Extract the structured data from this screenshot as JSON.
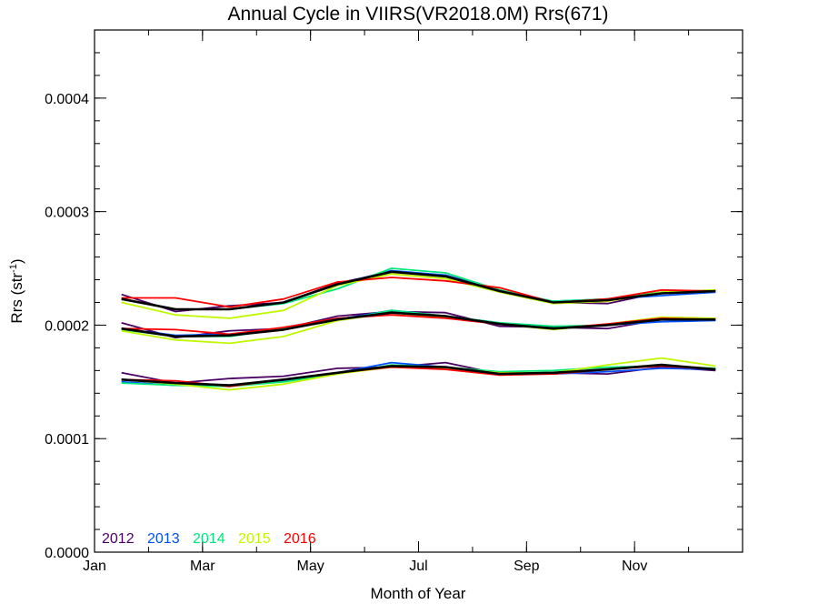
{
  "chart_data": {
    "type": "line",
    "title": "Annual Cycle in VIIRS(VR2018.0M) Rrs(671)",
    "xlabel": "Month of Year",
    "ylabel": "Rrs (str",
    "ylabel_sup": "-1",
    "ylabel_end": ")",
    "xlim": [
      1,
      13
    ],
    "ylim": [
      0,
      0.00046
    ],
    "x_ticks": [
      1,
      3,
      5,
      7,
      9,
      11
    ],
    "x_tick_labels": [
      "Jan",
      "Mar",
      "May",
      "Jul",
      "Sep",
      "Nov"
    ],
    "y_ticks": [
      0,
      0.0001,
      0.0002,
      0.0003,
      0.0004
    ],
    "y_tick_labels": [
      "0.0000",
      "0.0001",
      "0.0002",
      "0.0003",
      "0.0004"
    ],
    "legend_position": "bottom-left",
    "legend": [
      {
        "label": "2012",
        "color": "#4b0064"
      },
      {
        "label": "2013",
        "color": "#0050ff"
      },
      {
        "label": "2014",
        "color": "#00e87a"
      },
      {
        "label": "2015",
        "color": "#c0f800"
      },
      {
        "label": "2016",
        "color": "#ff0000"
      }
    ],
    "x": [
      1.5,
      2.5,
      3.5,
      4.5,
      5.5,
      6.5,
      7.5,
      8.5,
      9.5,
      10.5,
      11.5,
      12.5
    ],
    "series": [
      {
        "name": "2012",
        "group": "upper",
        "color": "#4b0064",
        "values": [
          0.000227,
          0.000212,
          0.000217,
          0.00022,
          0.000237,
          0.000247,
          0.000244,
          0.000231,
          0.00022,
          0.000219,
          0.000229,
          0.00023
        ]
      },
      {
        "name": "2013",
        "group": "upper",
        "color": "#0050ff",
        "values": [
          0.000223,
          0.000214,
          0.000214,
          0.00022,
          0.000236,
          0.000248,
          0.000244,
          0.00023,
          0.000221,
          0.000223,
          0.000226,
          0.000229
        ]
      },
      {
        "name": "2014",
        "group": "upper",
        "color": "#00e87a",
        "values": [
          0.000223,
          0.000214,
          0.000214,
          0.000219,
          0.000232,
          0.00025,
          0.000246,
          0.000231,
          0.000221,
          0.000223,
          0.000229,
          0.000231
        ]
      },
      {
        "name": "2015",
        "group": "upper",
        "color": "#c0f800",
        "values": [
          0.00022,
          0.000209,
          0.000206,
          0.000213,
          0.000235,
          0.000245,
          0.000241,
          0.000229,
          0.000219,
          0.000221,
          0.000229,
          0.000231
        ]
      },
      {
        "name": "2016",
        "group": "upper",
        "color": "#ff0000",
        "values": [
          0.000224,
          0.000224,
          0.000216,
          0.000223,
          0.000238,
          0.000242,
          0.000239,
          0.000233,
          0.00022,
          0.000223,
          0.000231,
          0.00023
        ]
      },
      {
        "name": "",
        "group": "upper",
        "color": "#000000",
        "values": [
          0.000223,
          0.000214,
          0.000214,
          0.00022,
          0.000236,
          0.000247,
          0.000243,
          0.00023,
          0.00022,
          0.000222,
          0.000228,
          0.00023
        ]
      },
      {
        "name": "2012",
        "group": "middle",
        "color": "#4b0064",
        "values": [
          0.000202,
          0.000189,
          0.000195,
          0.000197,
          0.000208,
          0.000212,
          0.000211,
          0.000199,
          0.000198,
          0.000197,
          0.000205,
          0.000205
        ]
      },
      {
        "name": "2013",
        "group": "middle",
        "color": "#0050ff",
        "values": [
          0.000197,
          0.000191,
          0.000192,
          0.000196,
          0.000205,
          0.000213,
          0.000208,
          0.000202,
          0.000197,
          0.0002,
          0.000203,
          0.000204
        ]
      },
      {
        "name": "2014",
        "group": "middle",
        "color": "#00e87a",
        "values": [
          0.000196,
          0.00019,
          0.00019,
          0.000197,
          0.000204,
          0.000213,
          0.000208,
          0.000202,
          0.000199,
          0.0002,
          0.000205,
          0.000205
        ]
      },
      {
        "name": "2015",
        "group": "middle",
        "color": "#c0f800",
        "values": [
          0.000195,
          0.000187,
          0.000184,
          0.00019,
          0.000204,
          0.000211,
          0.000207,
          0.000201,
          0.000196,
          0.000201,
          0.000207,
          0.000206
        ]
      },
      {
        "name": "2016",
        "group": "middle",
        "color": "#ff0000",
        "values": [
          0.000197,
          0.000196,
          0.000192,
          0.000198,
          0.000206,
          0.000209,
          0.000206,
          0.000201,
          0.000197,
          0.000201,
          0.000206,
          0.000205
        ]
      },
      {
        "name": "",
        "group": "middle",
        "color": "#000000",
        "values": [
          0.000197,
          0.00019,
          0.000191,
          0.000196,
          0.000205,
          0.000211,
          0.000208,
          0.000201,
          0.000197,
          0.0002,
          0.000205,
          0.000205
        ]
      },
      {
        "name": "2012",
        "group": "lower",
        "color": "#4b0064",
        "values": [
          0.000158,
          0.000149,
          0.000153,
          0.000155,
          0.000162,
          0.000163,
          0.000167,
          0.000157,
          0.000158,
          0.000157,
          0.000163,
          0.00016
        ]
      },
      {
        "name": "2013",
        "group": "lower",
        "color": "#0050ff",
        "values": [
          0.00015,
          0.000147,
          0.000147,
          0.000151,
          0.000158,
          0.000167,
          0.000163,
          0.000157,
          0.000157,
          0.000159,
          0.000162,
          0.000161
        ]
      },
      {
        "name": "2014",
        "group": "lower",
        "color": "#00e87a",
        "values": [
          0.000149,
          0.000147,
          0.000146,
          0.00015,
          0.000157,
          0.000165,
          0.000163,
          0.000159,
          0.00016,
          0.000163,
          0.000164,
          0.000162
        ]
      },
      {
        "name": "2015",
        "group": "lower",
        "color": "#c0f800",
        "values": [
          0.000152,
          0.000148,
          0.000143,
          0.000148,
          0.000157,
          0.000163,
          0.000162,
          0.000158,
          0.000158,
          0.000165,
          0.000171,
          0.000164
        ]
      },
      {
        "name": "2016",
        "group": "lower",
        "color": "#ff0000",
        "values": [
          0.000152,
          0.000151,
          0.000146,
          0.000152,
          0.000158,
          0.000163,
          0.000161,
          0.000156,
          0.000157,
          0.000161,
          0.000164,
          0.000161
        ]
      },
      {
        "name": "",
        "group": "lower",
        "color": "#000000",
        "values": [
          0.000152,
          0.000149,
          0.000147,
          0.000152,
          0.000158,
          0.000164,
          0.000163,
          0.000157,
          0.000158,
          0.000161,
          0.000165,
          0.000161
        ]
      }
    ]
  }
}
